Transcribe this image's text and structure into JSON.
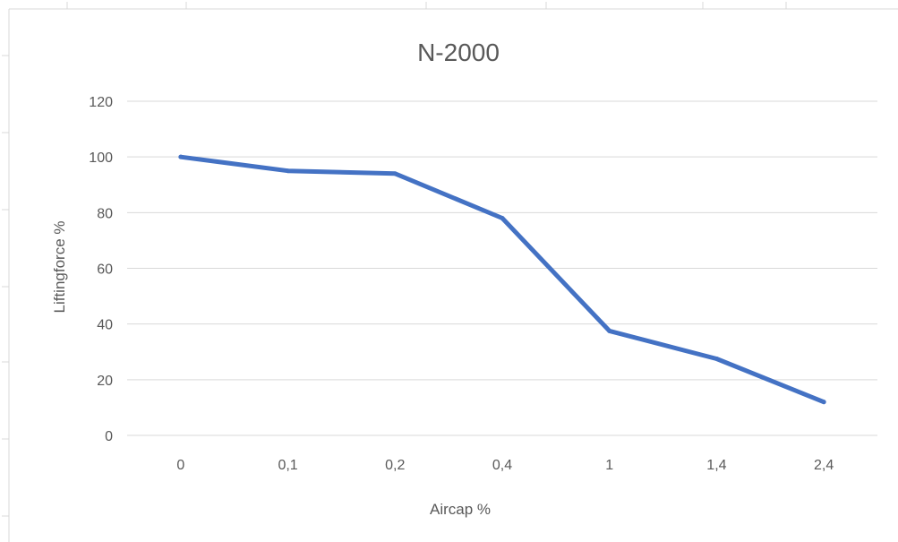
{
  "chart_data": {
    "type": "line",
    "title": "N-2000",
    "xlabel": "Aircap %",
    "ylabel": "Liftingforce %",
    "categories": [
      "0",
      "0,1",
      "0,2",
      "0,4",
      "1",
      "1,4",
      "2,4"
    ],
    "series": [
      {
        "values": [
          100,
          95,
          94,
          78,
          37.5,
          27.5,
          12
        ]
      }
    ],
    "ylim": [
      0,
      120
    ],
    "yticks": [
      "0",
      "20",
      "40",
      "60",
      "80",
      "100",
      "120"
    ],
    "grid": "horizontal",
    "legend": "none",
    "line_color": "#4472c4"
  }
}
